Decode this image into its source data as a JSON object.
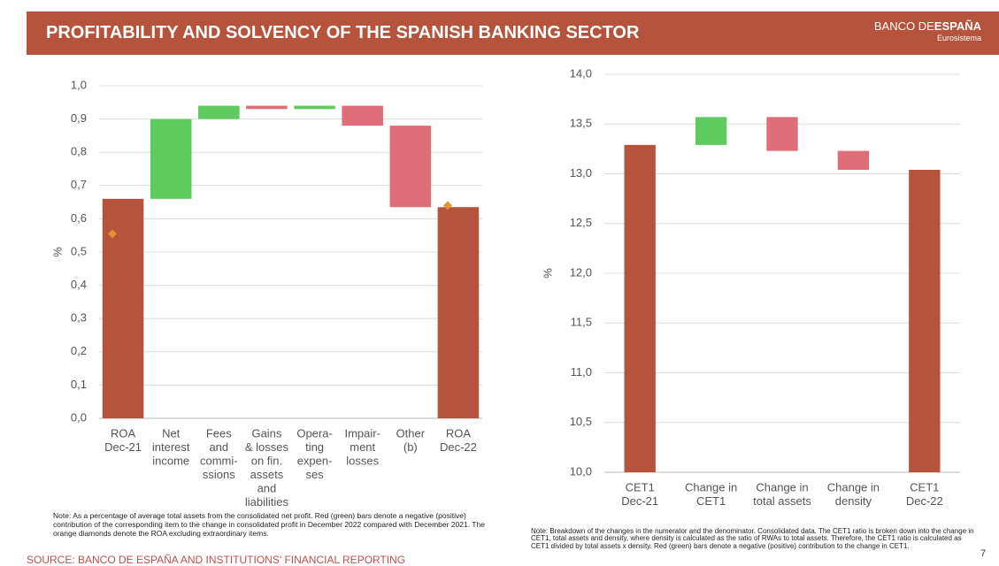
{
  "header": {
    "title": "PROFITABILITY AND SOLVENCY OF THE SPANISH BANKING SECTOR",
    "logo": [
      "BANCO DE",
      "ESPAÑA"
    ],
    "subtitle": "Eurosistema"
  },
  "chart_data": [
    {
      "type": "waterfall",
      "ylabel": "%",
      "categories": [
        [
          "ROA",
          "Dec-21"
        ],
        [
          "Net",
          "interest",
          "income"
        ],
        [
          "Fees",
          "and",
          "commi-",
          "ssions"
        ],
        [
          "Gains",
          "& losses",
          "on fin.",
          "assets",
          "and",
          "liabilities"
        ],
        [
          "Opera-",
          "ting",
          "expen-",
          "ses"
        ],
        [
          "Impair-",
          "ment",
          "losses"
        ],
        [
          "Other",
          "(b)"
        ],
        [
          "ROA",
          "Dec-22"
        ]
      ],
      "values": [
        0.66,
        0.24,
        0.04,
        -0.01,
        0.01,
        -0.06,
        -0.245,
        0.635
      ],
      "measure": [
        "total",
        "relative",
        "relative",
        "relative",
        "relative",
        "relative",
        "relative",
        "total"
      ],
      "colors": {
        "total": "#b5533c",
        "increase": "#5fcb5f",
        "decrease": "#e06e78"
      },
      "markers": {
        "color": "#e0962e",
        "values": [
          0.555,
          null,
          null,
          null,
          null,
          null,
          null,
          0.64
        ]
      },
      "ylim": [
        0,
        1
      ],
      "yticks": [
        {
          "value": 0,
          "label": "0,0"
        },
        {
          "value": 0.1,
          "label": "0,1"
        },
        {
          "value": 0.2,
          "label": "0,2"
        },
        {
          "value": 0.3,
          "label": "0,3"
        },
        {
          "value": 0.4,
          "label": "0,4"
        },
        {
          "value": 0.5,
          "label": "0,5"
        },
        {
          "value": 0.6,
          "label": "0,6"
        },
        {
          "value": 0.7,
          "label": "0,7"
        },
        {
          "value": 0.8,
          "label": "0,8"
        },
        {
          "value": 0.9,
          "label": "0,9"
        },
        {
          "value": 1,
          "label": "1,0"
        }
      ],
      "grid": true,
      "note": "Note: As a percentage of average total assets from the consolidated net profit. Red (green) bars denote a negative (positive) contribution of the corresponding item to the change in consolidated profit in December 2022 compared with December 2021. The orange diamonds denote the ROA excluding extraordinary items."
    },
    {
      "type": "waterfall",
      "ylabel": "%",
      "categories": [
        [
          "CET1",
          "Dec-21"
        ],
        [
          "Change in",
          "CET1"
        ],
        [
          "Change in",
          "total assets"
        ],
        [
          "Change in",
          "density"
        ],
        [
          "CET1",
          "Dec-22"
        ]
      ],
      "values": [
        13.29,
        0.28,
        -0.34,
        -0.19,
        13.04
      ],
      "measure": [
        "total",
        "relative",
        "relative",
        "relative",
        "total"
      ],
      "colors": {
        "total": "#b5533c",
        "increase": "#5fcb5f",
        "decrease": "#e06e78"
      },
      "ylim": [
        10,
        14
      ],
      "yticks": [
        {
          "value": 10,
          "label": "10,0"
        },
        {
          "value": 10.5,
          "label": "10,5"
        },
        {
          "value": 11,
          "label": "11,0"
        },
        {
          "value": 11.5,
          "label": "11,5"
        },
        {
          "value": 12,
          "label": "12,0"
        },
        {
          "value": 12.5,
          "label": "12,5"
        },
        {
          "value": 13,
          "label": "13,0"
        },
        {
          "value": 13.5,
          "label": "13,5"
        },
        {
          "value": 14,
          "label": "14,0"
        }
      ],
      "grid": true,
      "note": "Note: Breakdown of the changes in the numerator and the denominator. Consolidated data. The CET1 ratio is broken down into the change in CET1, total assets and density, where density is calculated as the ratio of RWAs to total assets. Therefore, the CET1 ratio is calculated as CET1 divided by total assets x density. Red (green) bars denote a negative (positive) contribution to the change in CET1."
    }
  ],
  "source": "SOURCE: BANCO DE ESPAÑA AND INSTITUTIONS' FINANCIAL REPORTING",
  "page": 7
}
